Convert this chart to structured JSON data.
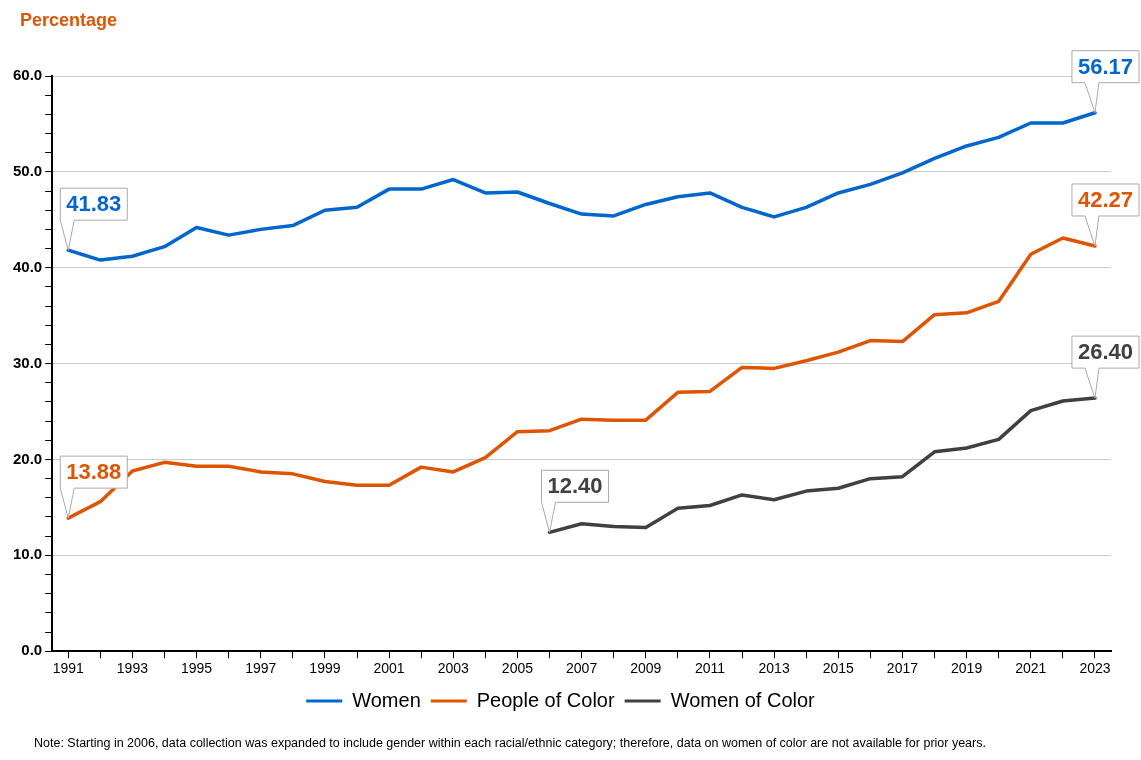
{
  "chart_data": {
    "type": "line",
    "ylabel": "Percentage",
    "x": [
      1991,
      1992,
      1993,
      1994,
      1995,
      1996,
      1997,
      1998,
      1999,
      2000,
      2001,
      2002,
      2003,
      2004,
      2005,
      2006,
      2007,
      2008,
      2009,
      2010,
      2011,
      2012,
      2013,
      2014,
      2015,
      2016,
      2017,
      2018,
      2019,
      2020,
      2021,
      2022,
      2023
    ],
    "xlim": [
      1990.5,
      2023.5
    ],
    "xticks": [
      1991,
      {
        "value": 1992,
        "label": null
      },
      1993,
      {
        "value": 1994,
        "label": null
      },
      1995,
      {
        "value": 1996,
        "label": null
      },
      1997,
      {
        "value": 1998,
        "label": null
      },
      1999,
      {
        "value": 2000,
        "label": null
      },
      2001,
      {
        "value": 2002,
        "label": null
      },
      2003,
      {
        "value": 2004,
        "label": null
      },
      2005,
      {
        "value": 2006,
        "label": null
      },
      2007,
      {
        "value": 2008,
        "label": null
      },
      2009,
      {
        "value": 2010,
        "label": null
      },
      2011,
      {
        "value": 2012,
        "label": null
      },
      2013,
      {
        "value": 2014,
        "label": null
      },
      2015,
      {
        "value": 2016,
        "label": null
      },
      2017,
      {
        "value": 2018,
        "label": null
      },
      2019,
      {
        "value": 2020,
        "label": null
      },
      2021,
      {
        "value": 2022,
        "label": null
      },
      2023
    ],
    "ylim": [
      0,
      60
    ],
    "yticks": [
      {
        "value": 0,
        "label": "0.0"
      },
      {
        "value": 2,
        "label": null
      },
      {
        "value": 4,
        "label": null
      },
      {
        "value": 6,
        "label": null
      },
      {
        "value": 8,
        "label": null
      },
      {
        "value": 10,
        "label": "10.0"
      },
      {
        "value": 12,
        "label": null
      },
      {
        "value": 14,
        "label": null
      },
      {
        "value": 16,
        "label": null
      },
      {
        "value": 18,
        "label": null
      },
      {
        "value": 20,
        "label": "20.0"
      },
      {
        "value": 22,
        "label": null
      },
      {
        "value": 24,
        "label": null
      },
      {
        "value": 26,
        "label": null
      },
      {
        "value": 28,
        "label": null
      },
      {
        "value": 30,
        "label": "30.0"
      },
      {
        "value": 32,
        "label": null
      },
      {
        "value": 34,
        "label": null
      },
      {
        "value": 36,
        "label": null
      },
      {
        "value": 38,
        "label": null
      },
      {
        "value": 40,
        "label": "40.0"
      },
      {
        "value": 42,
        "label": null
      },
      {
        "value": 44,
        "label": null
      },
      {
        "value": 46,
        "label": null
      },
      {
        "value": 48,
        "label": null
      },
      {
        "value": 50,
        "label": "50.0"
      },
      {
        "value": 52,
        "label": null
      },
      {
        "value": 54,
        "label": null
      },
      {
        "value": 56,
        "label": null
      },
      {
        "value": 58,
        "label": null
      },
      {
        "value": 60,
        "label": "60.0"
      }
    ],
    "grid": "y",
    "legend": "bottom",
    "marker": "none",
    "line_style": "solid",
    "series": [
      {
        "name": "Women",
        "color": "#0066cc",
        "values": [
          41.83,
          40.8,
          41.2,
          42.2,
          44.2,
          43.4,
          44.0,
          44.4,
          46.0,
          46.3,
          48.2,
          48.2,
          49.2,
          47.8,
          47.9,
          46.7,
          45.6,
          45.4,
          46.6,
          47.4,
          47.8,
          46.3,
          45.3,
          46.3,
          47.8,
          48.7,
          49.9,
          51.4,
          52.7,
          53.6,
          55.1,
          55.1,
          56.17
        ],
        "value_labels": [
          "41.83",
          null,
          null,
          null,
          null,
          null,
          null,
          null,
          null,
          null,
          null,
          null,
          null,
          null,
          null,
          null,
          null,
          null,
          null,
          null,
          null,
          null,
          null,
          null,
          null,
          null,
          null,
          null,
          null,
          null,
          null,
          null,
          "56.17"
        ]
      },
      {
        "name": "People of Color",
        "color": "#dd5500",
        "values": [
          13.88,
          15.6,
          18.8,
          19.7,
          19.3,
          19.3,
          18.7,
          18.5,
          17.7,
          17.3,
          17.3,
          19.2,
          18.7,
          20.2,
          22.9,
          23.0,
          24.2,
          24.1,
          24.1,
          27.0,
          27.1,
          29.6,
          29.5,
          30.3,
          31.2,
          32.4,
          32.3,
          35.1,
          35.3,
          36.5,
          41.4,
          43.1,
          42.27
        ],
        "value_labels": [
          "13.88",
          null,
          null,
          null,
          null,
          null,
          null,
          null,
          null,
          null,
          null,
          null,
          null,
          null,
          null,
          null,
          null,
          null,
          null,
          null,
          null,
          null,
          null,
          null,
          null,
          null,
          null,
          null,
          null,
          null,
          null,
          null,
          "42.27"
        ]
      },
      {
        "name": "Women of Color",
        "color": "#404040",
        "values": [
          null,
          null,
          null,
          null,
          null,
          null,
          null,
          null,
          null,
          null,
          null,
          null,
          null,
          null,
          null,
          12.4,
          13.3,
          13.0,
          12.9,
          14.9,
          15.2,
          16.3,
          15.8,
          16.7,
          17.0,
          18.0,
          18.2,
          20.8,
          21.2,
          22.1,
          25.1,
          26.1,
          26.4
        ],
        "value_labels": [
          null,
          null,
          null,
          null,
          null,
          null,
          null,
          null,
          null,
          null,
          null,
          null,
          null,
          null,
          null,
          "12.40",
          null,
          null,
          null,
          null,
          null,
          null,
          null,
          null,
          null,
          null,
          null,
          null,
          null,
          null,
          null,
          null,
          "26.40"
        ]
      }
    ],
    "annotations": [
      "Note: Starting in 2006, data collection was expanded to include gender within each racial/ethnic category; therefore, data on women of color are not available for prior years."
    ]
  }
}
